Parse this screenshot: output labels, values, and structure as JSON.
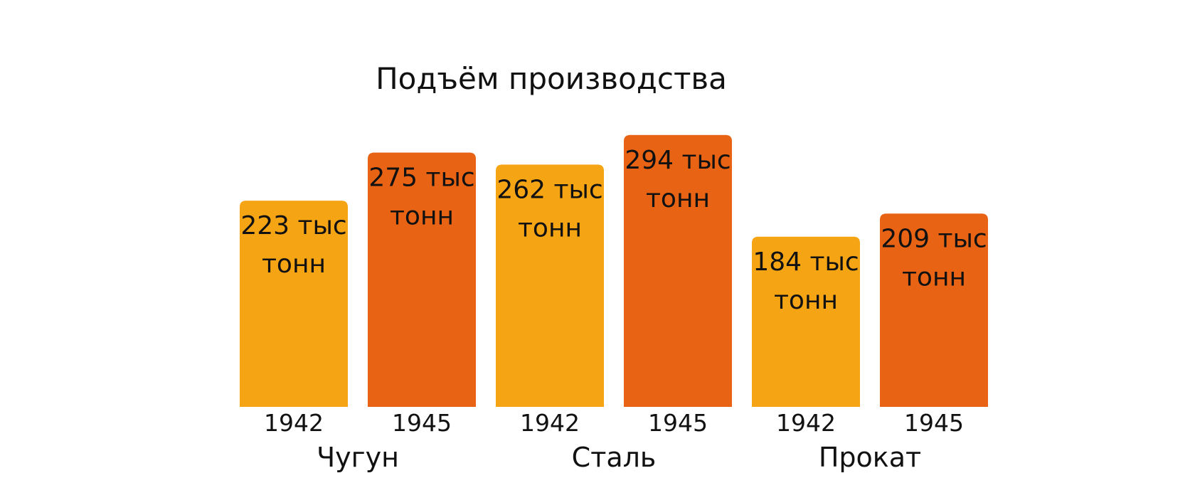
{
  "chart_data": {
    "type": "bar",
    "title": "Подъём производства",
    "xlabel": "",
    "ylabel": "",
    "grid": false,
    "ylim": [
      0,
      310
    ],
    "groups": [
      {
        "name": "Чугун",
        "bars": [
          {
            "year": "1942",
            "value": 223,
            "label_line1": "223 тыс",
            "label_line2": "тонн",
            "color": "#F5A414"
          },
          {
            "year": "1945",
            "value": 275,
            "label_line1": "275 тыс",
            "label_line2": "тонн",
            "color": "#E86414"
          }
        ]
      },
      {
        "name": "Сталь",
        "bars": [
          {
            "year": "1942",
            "value": 262,
            "label_line1": "262 тыс",
            "label_line2": "тонн",
            "color": "#F5A414"
          },
          {
            "year": "1945",
            "value": 294,
            "label_line1": "294 тыс",
            "label_line2": "тонн",
            "color": "#E86414"
          }
        ]
      },
      {
        "name": "Прокат",
        "bars": [
          {
            "year": "1942",
            "value": 184,
            "label_line1": "184 тыс",
            "label_line2": "тонн",
            "color": "#F5A414"
          },
          {
            "year": "1945",
            "value": 209,
            "label_line1": "209 тыс",
            "label_line2": "тонн",
            "color": "#E86414"
          }
        ]
      }
    ]
  }
}
